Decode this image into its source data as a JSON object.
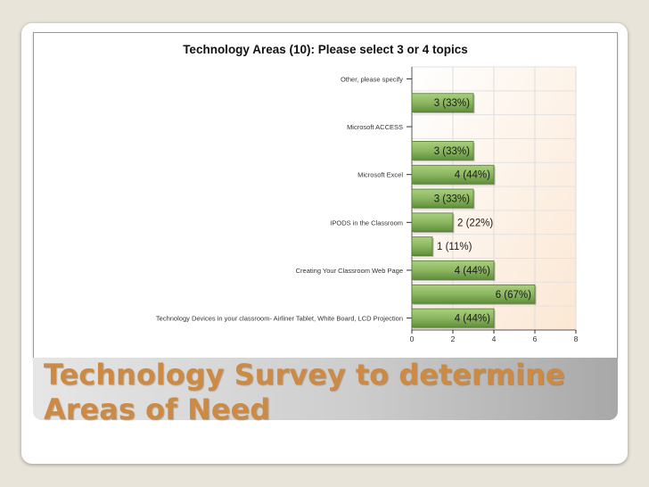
{
  "slide": {
    "title": "Technology Survey to determine\nAreas of Need"
  },
  "chart_data": {
    "type": "bar",
    "orientation": "horizontal",
    "title": "Technology Areas (10): Please select 3 or 4 topics",
    "bar_color": "#8db661",
    "background_gradient": [
      "#ffffff",
      "#fbe7d3"
    ],
    "xlim": [
      0,
      8
    ],
    "xticks": [
      0,
      2,
      4,
      6,
      8
    ],
    "categories": [
      "Other, please specify",
      "",
      "Microsoft ACCESS",
      "",
      "Microsoft Excel",
      "",
      "IPODS in the Classroom",
      "",
      "Creating Your Classroom Web Page",
      "",
      "Technology Devices in your classroom- Airliner Tablet, White Board, LCD Projection"
    ],
    "values": [
      null,
      3,
      null,
      3,
      4,
      3,
      2,
      1,
      4,
      6,
      4
    ],
    "data_labels": [
      "",
      "3 (33%)",
      "",
      "3 (33%)",
      "4 (44%)",
      "3 (33%)",
      "2 (22%)",
      "1 (11%)",
      "4 (44%)",
      "6 (67%)",
      "4 (44%)"
    ],
    "grid": true
  }
}
